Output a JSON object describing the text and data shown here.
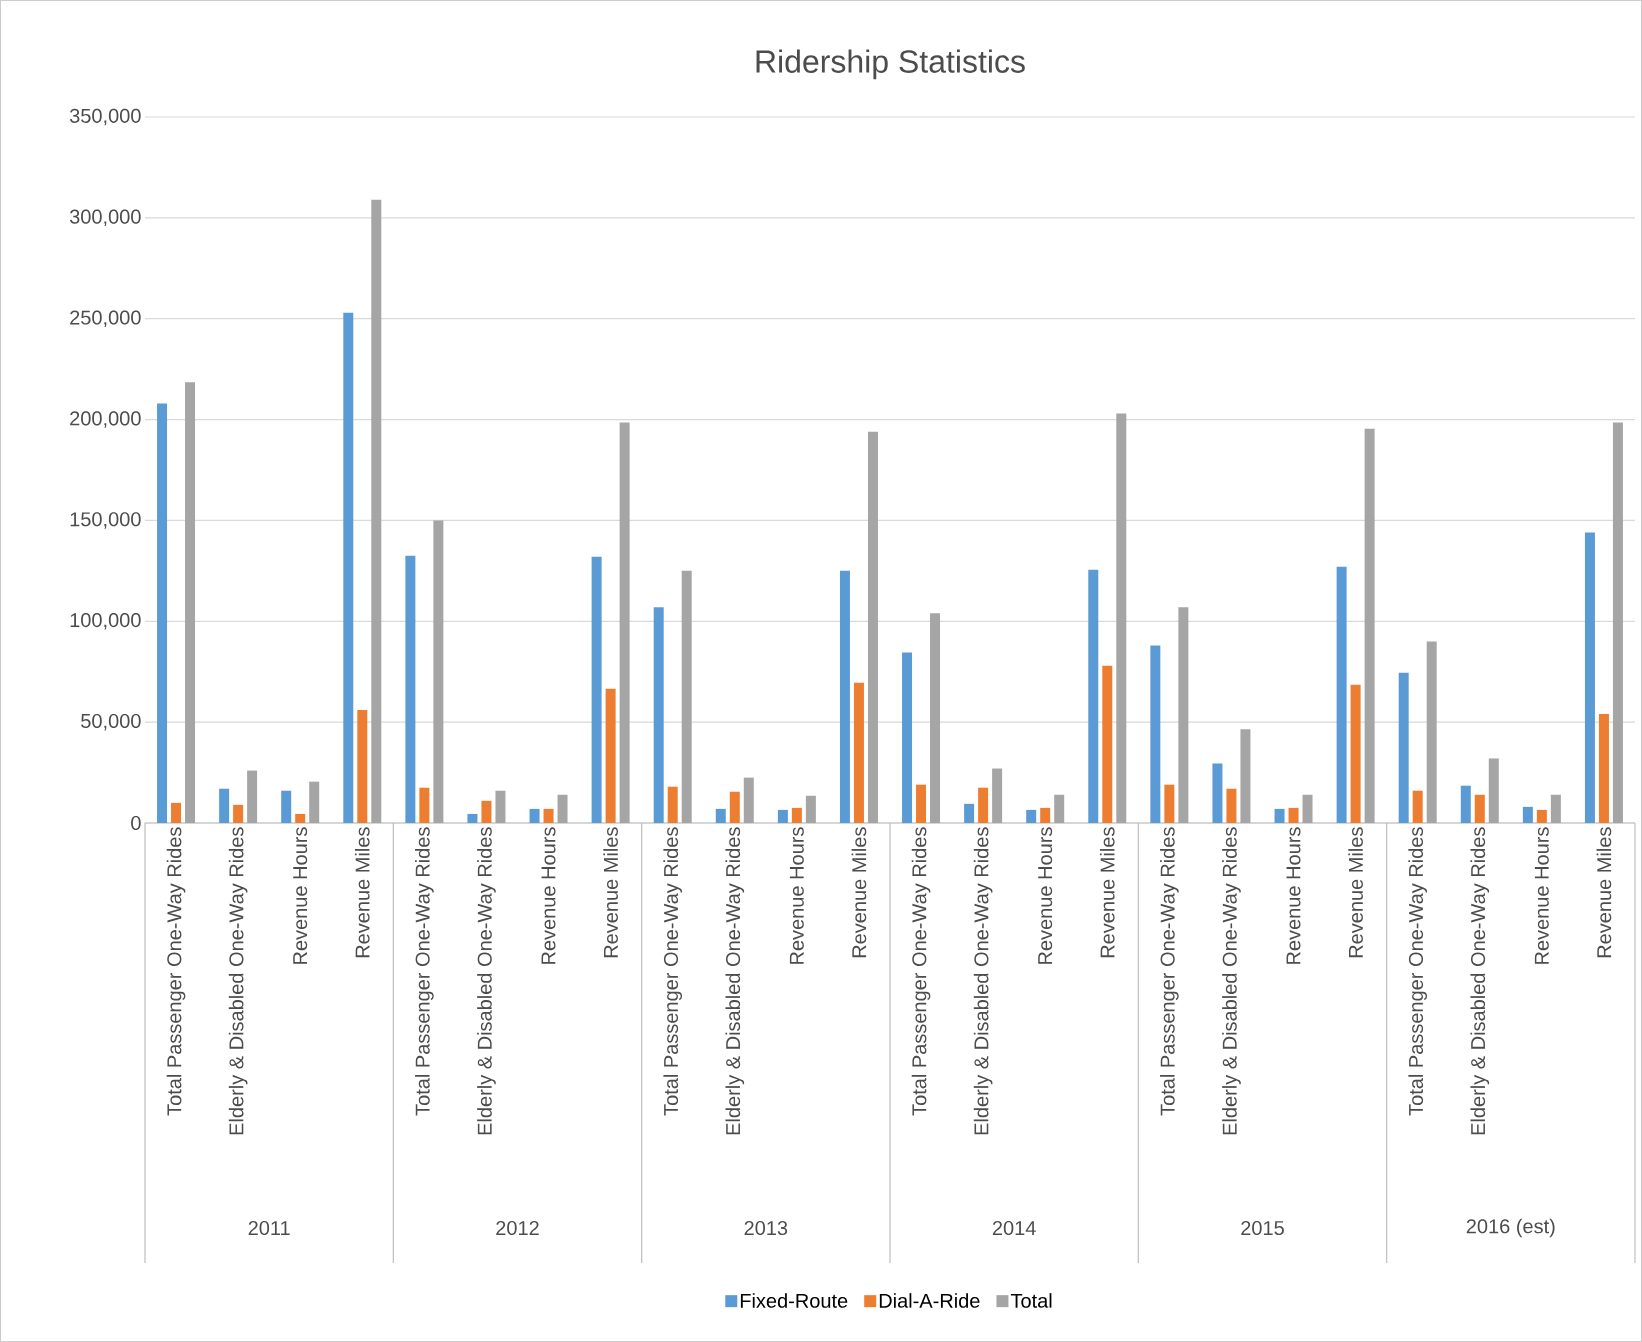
{
  "chart_data": {
    "type": "bar",
    "title": "Ridership Statistics",
    "categories": [
      "Total Passenger One-Way Rides",
      "Elderly & Disabled One-Way Rides",
      "Revenue Hours",
      "Revenue Miles",
      "Total Passenger One-Way Rides",
      "Elderly & Disabled One-Way Rides",
      "Revenue Hours",
      "Revenue Miles",
      "Total Passenger One-Way Rides",
      "Elderly & Disabled One-Way Rides",
      "Revenue Hours",
      "Revenue Miles",
      "Total Passenger One-Way Rides",
      "Elderly & Disabled One-Way Rides",
      "Revenue Hours",
      "Revenue Miles",
      "Total Passenger One-Way Rides",
      "Elderly & Disabled One-Way Rides",
      "Revenue Hours",
      "Revenue Miles",
      "Total Passenger One-Way Rides",
      "Elderly & Disabled One-Way Rides",
      "Revenue Hours",
      "Revenue Miles"
    ],
    "series": [
      {
        "name": "Fixed-Route",
        "color": "#5b9bd5",
        "values": [
          208000,
          17000,
          16000,
          253000,
          132500,
          4500,
          7000,
          132000,
          107000,
          7000,
          6500,
          125000,
          84500,
          9500,
          6500,
          125500,
          88000,
          29500,
          7000,
          127000,
          74500,
          18500,
          8000,
          144000
        ]
      },
      {
        "name": "Dial-A-Ride",
        "color": "#ed7d31",
        "values": [
          10000,
          9000,
          4500,
          56000,
          17500,
          11000,
          7000,
          66500,
          18000,
          15500,
          7500,
          69500,
          19000,
          17500,
          7500,
          78000,
          19000,
          17000,
          7500,
          68500,
          16000,
          14000,
          6500,
          54000
        ]
      },
      {
        "name": "Total",
        "color": "#a5a5a5",
        "values": [
          218500,
          26000,
          20500,
          309000,
          150000,
          16000,
          14000,
          198500,
          125000,
          22500,
          13500,
          194000,
          104000,
          27000,
          14000,
          203000,
          107000,
          46500,
          14000,
          195500,
          90000,
          32000,
          14000,
          198500
        ]
      }
    ],
    "annotations": [
      "2011",
      "2012",
      "2013",
      "2014",
      "2015",
      "2016 (est)"
    ],
    "ylim": [
      0,
      350000
    ],
    "yticks": [
      0,
      {
        "value": 50000,
        "label": "50,000"
      },
      {
        "value": 100000,
        "label": "100,000"
      },
      {
        "value": 150000,
        "label": "150,000"
      },
      {
        "value": 200000,
        "label": "200,000"
      },
      {
        "value": 250000,
        "label": "250,000"
      },
      {
        "value": 300000,
        "label": "300,000"
      },
      {
        "value": 350000,
        "label": "350,000"
      }
    ],
    "grid": "y",
    "legend": "bottom"
  }
}
